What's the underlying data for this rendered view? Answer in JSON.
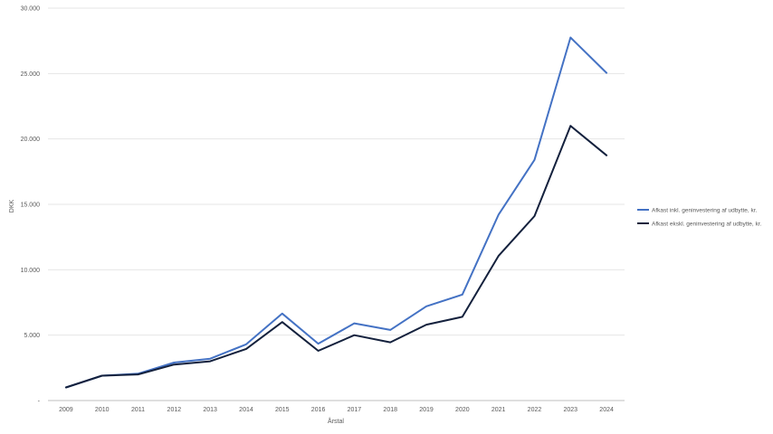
{
  "colors": {
    "series_1": "#4472c4",
    "series_2": "#14213d",
    "grid": "#e6e6e6",
    "axis": "#bfbfbf"
  },
  "chart_data": {
    "type": "line",
    "title": "",
    "xlabel": "Årstal",
    "ylabel": "DKK",
    "grid": true,
    "legend_position": "right",
    "ylim": [
      0,
      30000
    ],
    "yticks": [
      {
        "value": 0,
        "label": "-"
      },
      {
        "value": 5000,
        "label": "5.000"
      },
      {
        "value": 10000,
        "label": "10.000"
      },
      {
        "value": 15000,
        "label": "15.000"
      },
      {
        "value": 20000,
        "label": "20.000"
      },
      {
        "value": 25000,
        "label": "25.000"
      },
      {
        "value": 30000,
        "label": "30.000"
      }
    ],
    "categories": [
      "2009",
      "2010",
      "2011",
      "2012",
      "2013",
      "2014",
      "2015",
      "2016",
      "2017",
      "2018",
      "2019",
      "2020",
      "2021",
      "2022",
      "2023",
      "2024"
    ],
    "series": [
      {
        "name": "Afkast inkl. geninvestering af udbytte, kr.",
        "color": "#4472c4",
        "values": [
          1000,
          1900,
          2050,
          2900,
          3200,
          4300,
          6650,
          4350,
          5900,
          5400,
          7200,
          8100,
          14200,
          18400,
          27750,
          25050
        ]
      },
      {
        "name": "Afkast ekskl. geninvestering af udbytte, kr.",
        "color": "#14213d",
        "values": [
          1000,
          1900,
          2000,
          2750,
          3000,
          3950,
          6000,
          3800,
          5000,
          4450,
          5800,
          6400,
          11050,
          14100,
          21000,
          18750
        ]
      }
    ]
  }
}
